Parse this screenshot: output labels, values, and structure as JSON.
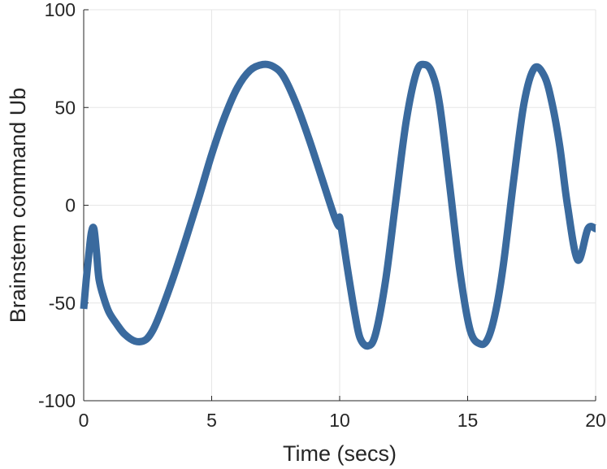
{
  "chart_data": {
    "type": "line",
    "title": "",
    "xlabel": "Time (secs)",
    "ylabel": "Brainstem command Ub",
    "xlim": [
      0,
      20
    ],
    "ylim": [
      -100,
      100
    ],
    "xticks": [
      0,
      5,
      10,
      15,
      20
    ],
    "yticks": [
      -100,
      -50,
      0,
      50,
      100
    ],
    "xtick_labels": [
      "0",
      "5",
      "10",
      "15",
      "20"
    ],
    "ytick_labels": [
      "-100",
      "-50",
      "0",
      "50",
      "100"
    ],
    "grid": true,
    "line_color": "#3a6a9e",
    "series": [
      {
        "x": [
          0.0,
          0.1,
          0.2,
          0.3,
          0.4,
          0.5,
          0.6,
          0.8,
          1.0,
          1.3,
          1.6,
          2.0,
          2.4,
          2.7,
          3.0,
          3.5,
          4.0,
          4.5,
          5.0,
          5.5,
          6.0,
          6.5,
          7.0,
          7.4,
          7.8,
          8.3,
          8.8,
          9.3,
          9.8,
          10.0,
          10.0,
          10.3,
          10.6,
          10.8,
          11.1,
          11.4,
          11.8,
          12.2,
          12.6,
          13.0,
          13.3,
          13.6,
          13.9,
          14.3,
          14.7,
          15.1,
          15.5,
          15.8,
          16.1,
          16.4,
          16.8,
          17.2,
          17.6,
          18.0,
          18.3,
          18.6,
          18.9,
          19.3,
          19.7,
          20.0
        ],
        "y": [
          -53,
          -38,
          -25,
          -14,
          -12,
          -24,
          -38,
          -48,
          -55,
          -61,
          -66,
          -69.5,
          -69,
          -64,
          -55,
          -37,
          -17,
          4,
          26,
          45,
          60,
          69,
          72,
          71,
          66,
          52,
          34,
          14,
          -6,
          -11,
          -6,
          -32,
          -56,
          -68,
          -72,
          -66,
          -38,
          3,
          43,
          68,
          72,
          68,
          52,
          10,
          -34,
          -64,
          -71,
          -68,
          -54,
          -30,
          13,
          52,
          70,
          66,
          52,
          30,
          0,
          -28,
          -12,
          -12
        ]
      }
    ]
  }
}
